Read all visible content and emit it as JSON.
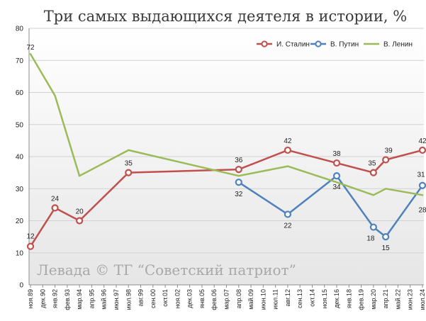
{
  "chart_data": {
    "type": "line",
    "title": "Три самых выдающихся деятеля в истории, %",
    "watermark": "Левада © ТГ “Советский патриот”",
    "ylim": [
      0,
      80
    ],
    "yticks": [
      0,
      10,
      20,
      30,
      40,
      50,
      60,
      70,
      80
    ],
    "grid": true,
    "legend_position": "top-right",
    "categories": [
      "ноя.89",
      "дек.90",
      "янв.92",
      "фев.93",
      "мар.94",
      "апр.95",
      "май.96",
      "июн.97",
      "июл.98",
      "авг.99",
      "сен.00",
      "окт.01",
      "ноя.02",
      "дек.03",
      "янв.05",
      "фев.06",
      "мар.07",
      "апр.08",
      "май.09",
      "июн.10",
      "июл.11",
      "авг.12",
      "сен.13",
      "окт.14",
      "ноя.15",
      "дек.16",
      "янв.18",
      "фев.19",
      "мар.20",
      "апр.21",
      "май.22",
      "июн.23",
      "июл.24"
    ],
    "series": [
      {
        "name": "И. Сталин",
        "color": "#c0504d",
        "marker": true,
        "points": [
          {
            "x": "ноя.89",
            "y": 12,
            "label": "12"
          },
          {
            "x": "янв.92",
            "y": 24,
            "label": "24"
          },
          {
            "x": "мар.94",
            "y": 20,
            "label": "20"
          },
          {
            "x": "июл.98",
            "y": 35,
            "label": "35"
          },
          {
            "x": "апр.08",
            "y": 36,
            "label": "36"
          },
          {
            "x": "авг.12",
            "y": 42,
            "label": "42"
          },
          {
            "x": "дек.16",
            "y": 38,
            "label": "38"
          },
          {
            "x": "мар.20",
            "y": 35,
            "label": "35"
          },
          {
            "x": "апр.21",
            "y": 39,
            "label": "39"
          },
          {
            "x": "июл.24",
            "y": 42,
            "label": "42"
          }
        ]
      },
      {
        "name": "В. Путин",
        "color": "#4f81bd",
        "marker": true,
        "points": [
          {
            "x": "апр.08",
            "y": 32,
            "label": "32"
          },
          {
            "x": "авг.12",
            "y": 22,
            "label": "22"
          },
          {
            "x": "дек.16",
            "y": 34,
            "label": "34"
          },
          {
            "x": "мар.20",
            "y": 18,
            "label": "18"
          },
          {
            "x": "апр.21",
            "y": 15,
            "label": "15"
          },
          {
            "x": "июл.24",
            "y": 31,
            "label": "31"
          }
        ]
      },
      {
        "name": "В. Ленин",
        "color": "#9bbb59",
        "marker": false,
        "points": [
          {
            "x": "ноя.89",
            "y": 72,
            "label": "72"
          },
          {
            "x": "янв.92",
            "y": 59
          },
          {
            "x": "мар.94",
            "y": 34
          },
          {
            "x": "июл.98",
            "y": 42
          },
          {
            "x": "апр.08",
            "y": 34
          },
          {
            "x": "авг.12",
            "y": 37
          },
          {
            "x": "дек.16",
            "y": 32
          },
          {
            "x": "мар.20",
            "y": 28
          },
          {
            "x": "апр.21",
            "y": 30
          },
          {
            "x": "июл.24",
            "y": 28,
            "label": "28"
          }
        ]
      }
    ]
  }
}
